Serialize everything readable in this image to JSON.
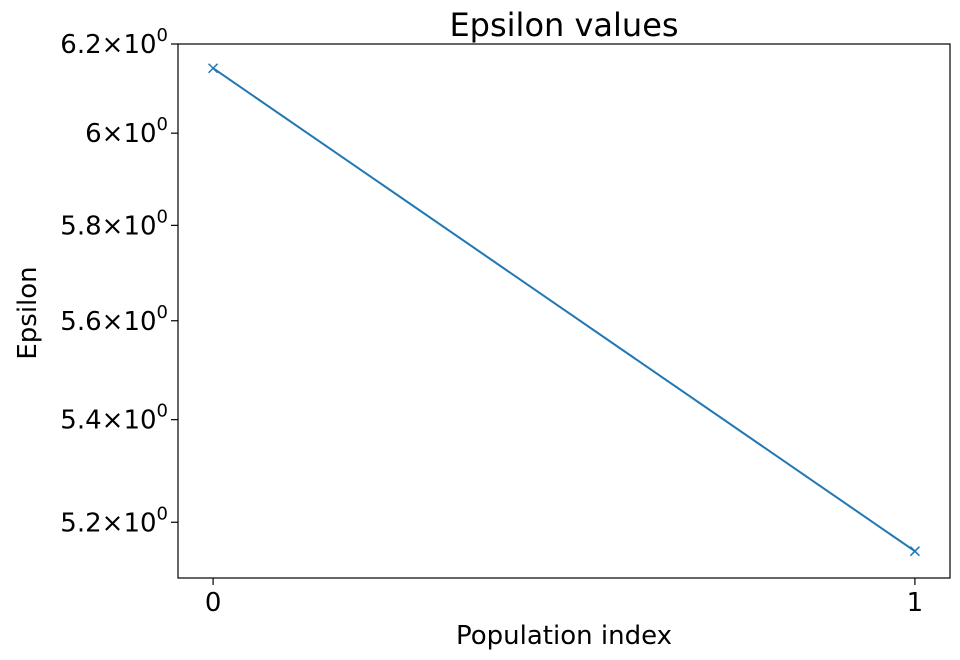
{
  "chart_data": {
    "type": "line",
    "title": "Epsilon values",
    "xlabel": "Population index",
    "ylabel": "Epsilon",
    "yscale": "log",
    "grid": false,
    "legend": "none",
    "x": [
      0,
      1
    ],
    "series": [
      {
        "values": [
          6.145,
          5.145
        ],
        "color": "#1f77b4",
        "marker": "x"
      }
    ],
    "xticks": [
      {
        "value": 0,
        "label": "0"
      },
      {
        "value": 1,
        "label": "1"
      }
    ],
    "yticks": [
      {
        "value": 6.2,
        "mantissa": "6.2",
        "exponent": "0"
      },
      {
        "value": 6.0,
        "mantissa": "6",
        "exponent": "0"
      },
      {
        "value": 5.8,
        "mantissa": "5.8",
        "exponent": "0"
      },
      {
        "value": 5.6,
        "mantissa": "5.6",
        "exponent": "0"
      },
      {
        "value": 5.4,
        "mantissa": "5.4",
        "exponent": "0"
      },
      {
        "value": 5.2,
        "mantissa": "5.2",
        "exponent": "0"
      }
    ],
    "tick_base": "10",
    "xlim": [
      -0.05,
      1.05
    ],
    "ylim": [
      5.0945,
      6.2
    ]
  }
}
